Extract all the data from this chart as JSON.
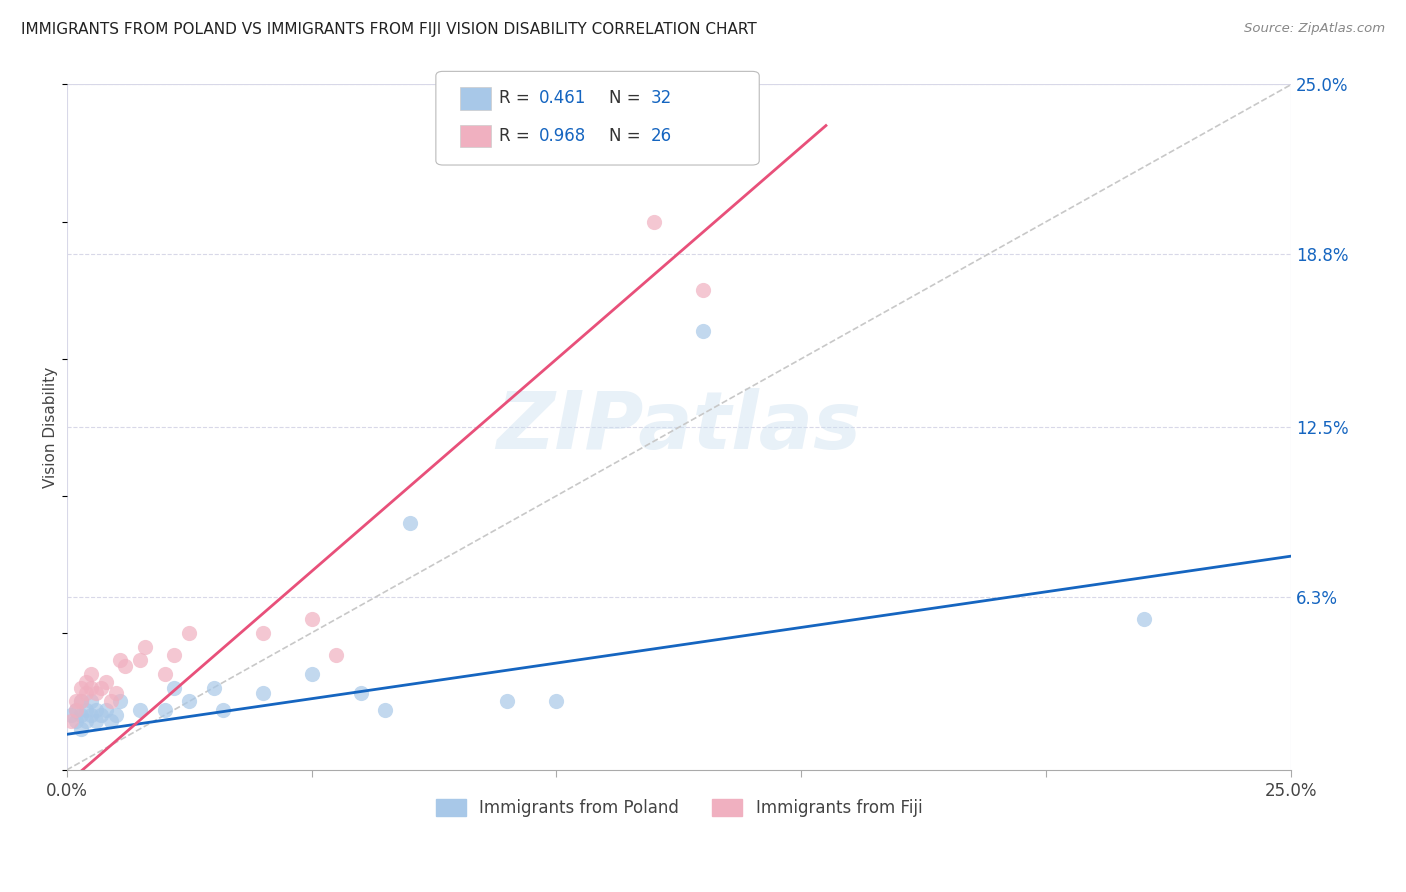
{
  "title": "IMMIGRANTS FROM POLAND VS IMMIGRANTS FROM FIJI VISION DISABILITY CORRELATION CHART",
  "source": "Source: ZipAtlas.com",
  "ylabel": "Vision Disability",
  "xlim": [
    0.0,
    0.25
  ],
  "ylim": [
    0.0,
    0.25
  ],
  "ytick_labels_right": [
    "25.0%",
    "18.8%",
    "12.5%",
    "6.3%"
  ],
  "ytick_vals_right": [
    0.25,
    0.188,
    0.125,
    0.063
  ],
  "poland_color": "#a8c8e8",
  "fiji_color": "#f0b0c0",
  "poland_line_color": "#1565c0",
  "fiji_line_color": "#e8507a",
  "diagonal_color": "#c8c8c8",
  "R_poland": "0.461",
  "N_poland": "32",
  "R_fiji": "0.968",
  "N_fiji": "26",
  "poland_scatter_x": [
    0.001,
    0.002,
    0.002,
    0.003,
    0.003,
    0.003,
    0.004,
    0.004,
    0.005,
    0.005,
    0.006,
    0.006,
    0.007,
    0.008,
    0.009,
    0.01,
    0.011,
    0.015,
    0.02,
    0.022,
    0.025,
    0.03,
    0.032,
    0.04,
    0.05,
    0.06,
    0.065,
    0.07,
    0.09,
    0.1,
    0.13,
    0.22
  ],
  "poland_scatter_y": [
    0.02,
    0.022,
    0.018,
    0.025,
    0.02,
    0.015,
    0.022,
    0.018,
    0.02,
    0.025,
    0.018,
    0.022,
    0.02,
    0.022,
    0.018,
    0.02,
    0.025,
    0.022,
    0.022,
    0.03,
    0.025,
    0.03,
    0.022,
    0.028,
    0.035,
    0.028,
    0.022,
    0.09,
    0.025,
    0.025,
    0.16,
    0.055
  ],
  "fiji_scatter_x": [
    0.001,
    0.002,
    0.002,
    0.003,
    0.003,
    0.004,
    0.004,
    0.005,
    0.005,
    0.006,
    0.007,
    0.008,
    0.009,
    0.01,
    0.011,
    0.012,
    0.015,
    0.016,
    0.02,
    0.022,
    0.025,
    0.04,
    0.05,
    0.055,
    0.12,
    0.13
  ],
  "fiji_scatter_y": [
    0.018,
    0.022,
    0.025,
    0.025,
    0.03,
    0.028,
    0.032,
    0.03,
    0.035,
    0.028,
    0.03,
    0.032,
    0.025,
    0.028,
    0.04,
    0.038,
    0.04,
    0.045,
    0.035,
    0.042,
    0.05,
    0.05,
    0.055,
    0.042,
    0.2,
    0.175
  ],
  "fiji_line_x0": 0.0,
  "fiji_line_y0": -0.005,
  "fiji_line_x1": 0.155,
  "fiji_line_y1": 0.235,
  "poland_line_x0": 0.0,
  "poland_line_y0": 0.013,
  "poland_line_x1": 0.25,
  "poland_line_y1": 0.078,
  "watermark": "ZIPatlas",
  "background_color": "#ffffff",
  "grid_color": "#d8d8e8",
  "grid_style": "--"
}
